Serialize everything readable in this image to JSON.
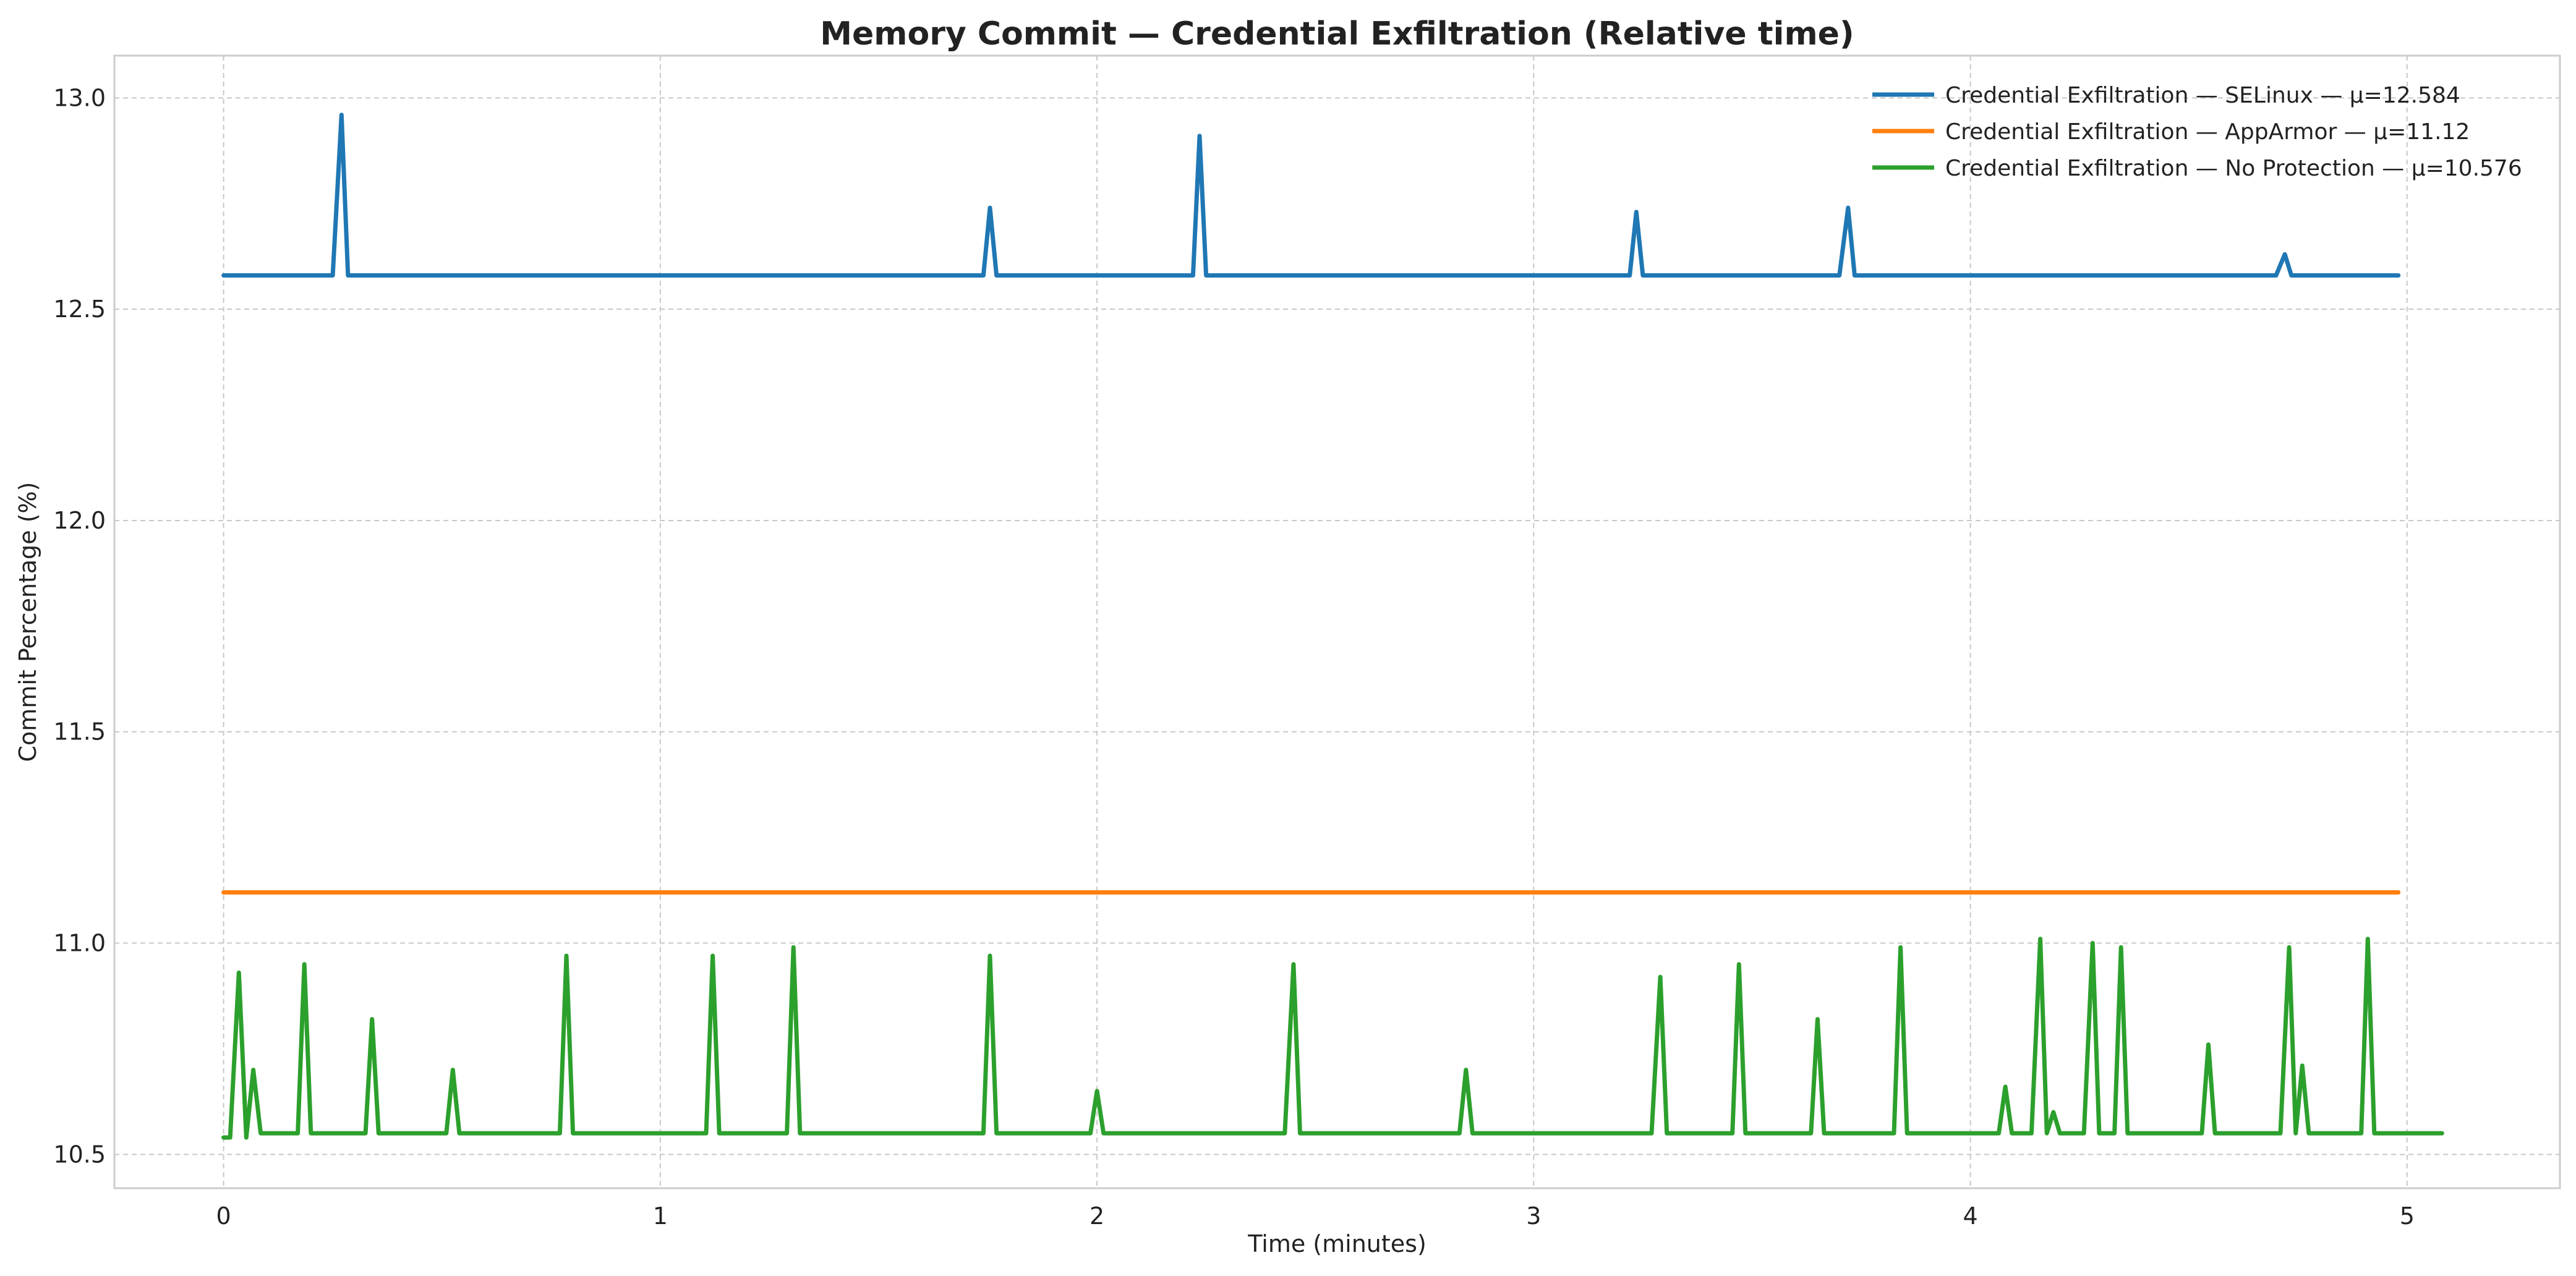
{
  "chart_data": {
    "type": "line",
    "title": "Memory Commit — Credential Exfiltration (Relative time)",
    "xlabel": "Time (minutes)",
    "ylabel": "Commit Percentage (%)",
    "xlim": [
      -0.25,
      5.35
    ],
    "ylim": [
      10.42,
      13.1
    ],
    "xticks": [
      0,
      1,
      2,
      3,
      4,
      5
    ],
    "xtick_labels": [
      "0",
      "1",
      "2",
      "3",
      "4",
      "5"
    ],
    "yticks": [
      10.5,
      11.0,
      11.5,
      12.0,
      12.5,
      13.0
    ],
    "ytick_labels": [
      "10.5",
      "11.0",
      "11.5",
      "12.0",
      "12.5",
      "13.0"
    ],
    "grid": true,
    "legend_position": "top-right",
    "series": [
      {
        "name": "Credential Exfiltration — SELinux — μ=12.584",
        "color": "#1f77b4",
        "x": [
          0,
          0.25,
          0.27,
          0.285,
          1.74,
          1.755,
          1.77,
          2.22,
          2.235,
          2.25,
          3.22,
          3.235,
          3.25,
          3.7,
          3.72,
          3.735,
          4.7,
          4.72,
          4.735,
          4.98
        ],
        "y": [
          12.58,
          12.58,
          12.96,
          12.58,
          12.58,
          12.74,
          12.58,
          12.58,
          12.91,
          12.58,
          12.58,
          12.73,
          12.58,
          12.58,
          12.74,
          12.58,
          12.58,
          12.63,
          12.58,
          12.58
        ]
      },
      {
        "name": "Credential Exfiltration — AppArmor — μ=11.12",
        "color": "#ff7f0e",
        "x": [
          0,
          4.98
        ],
        "y": [
          11.12,
          11.12
        ]
      },
      {
        "name": "Credential Exfiltration — No Protection — μ=10.576",
        "color": "#2ca02c",
        "x": [
          0,
          0.015,
          0.035,
          0.052,
          0.068,
          0.085,
          0.17,
          0.185,
          0.2,
          0.325,
          0.34,
          0.355,
          0.51,
          0.525,
          0.54,
          0.77,
          0.785,
          0.8,
          1.105,
          1.12,
          1.135,
          1.29,
          1.305,
          1.32,
          1.74,
          1.755,
          1.77,
          1.985,
          2.0,
          2.015,
          2.43,
          2.45,
          2.465,
          2.83,
          2.845,
          2.86,
          3.27,
          3.29,
          3.305,
          3.455,
          3.47,
          3.485,
          3.635,
          3.65,
          3.665,
          3.825,
          3.84,
          3.855,
          4.065,
          4.08,
          4.095,
          4.14,
          4.16,
          4.175,
          4.19,
          4.205,
          4.26,
          4.28,
          4.295,
          4.33,
          4.345,
          4.36,
          4.53,
          4.545,
          4.56,
          4.71,
          4.73,
          4.745,
          4.76,
          4.775,
          4.895,
          4.91,
          4.925,
          5.08
        ],
        "y": [
          10.54,
          10.54,
          10.93,
          10.54,
          10.7,
          10.55,
          10.55,
          10.95,
          10.55,
          10.55,
          10.82,
          10.55,
          10.55,
          10.7,
          10.55,
          10.55,
          10.97,
          10.55,
          10.55,
          10.97,
          10.55,
          10.55,
          10.99,
          10.55,
          10.55,
          10.97,
          10.55,
          10.55,
          10.65,
          10.55,
          10.55,
          10.95,
          10.55,
          10.55,
          10.7,
          10.55,
          10.55,
          10.92,
          10.55,
          10.55,
          10.95,
          10.55,
          10.55,
          10.82,
          10.55,
          10.55,
          10.99,
          10.55,
          10.55,
          10.66,
          10.55,
          10.55,
          11.01,
          10.55,
          10.6,
          10.55,
          10.55,
          11.0,
          10.55,
          10.55,
          10.99,
          10.55,
          10.55,
          10.76,
          10.55,
          10.55,
          10.99,
          10.55,
          10.71,
          10.55,
          10.55,
          11.01,
          10.55,
          10.55
        ]
      }
    ]
  }
}
